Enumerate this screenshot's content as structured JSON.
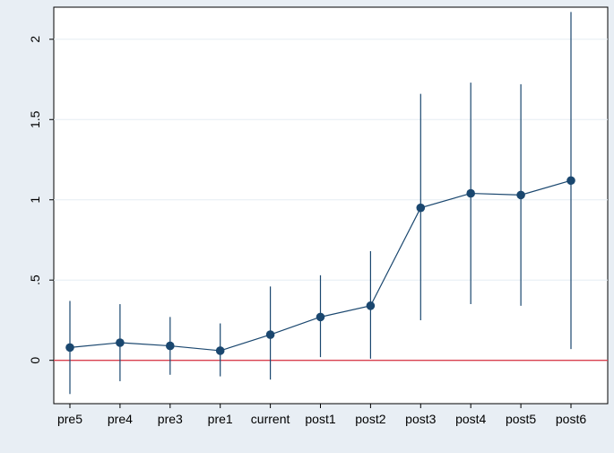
{
  "chart_data": {
    "type": "scatter",
    "categories": [
      "pre5",
      "pre4",
      "pre3",
      "pre1",
      "current",
      "post1",
      "post2",
      "post3",
      "post4",
      "post5",
      "post6"
    ],
    "series": [
      {
        "values": [
          0.08,
          0.11,
          0.09,
          0.06,
          0.16,
          0.27,
          0.34,
          0.95,
          1.04,
          1.03,
          1.12
        ],
        "ci_lower": [
          -0.21,
          -0.13,
          -0.09,
          -0.1,
          -0.12,
          0.02,
          0.01,
          0.25,
          0.35,
          0.34,
          0.07
        ],
        "ci_upper": [
          0.37,
          0.35,
          0.27,
          0.23,
          0.46,
          0.53,
          0.68,
          1.66,
          1.73,
          1.72,
          2.17
        ]
      }
    ],
    "yticks": [
      0,
      0.5,
      1,
      1.5,
      2
    ],
    "ytick_labels": [
      "0",
      ".5",
      "1",
      "1.5",
      "2"
    ],
    "ylim": [
      -0.27,
      2.2
    ],
    "reference_line": 0,
    "title": "",
    "xlabel": "",
    "ylabel": "",
    "grid": "horizontal",
    "colors": {
      "outer_background": "#e8eef4",
      "plot_background": "#ffffff",
      "grid": "#e6edf3",
      "series": "#1a476f",
      "reference_line": "#d9404f"
    }
  }
}
